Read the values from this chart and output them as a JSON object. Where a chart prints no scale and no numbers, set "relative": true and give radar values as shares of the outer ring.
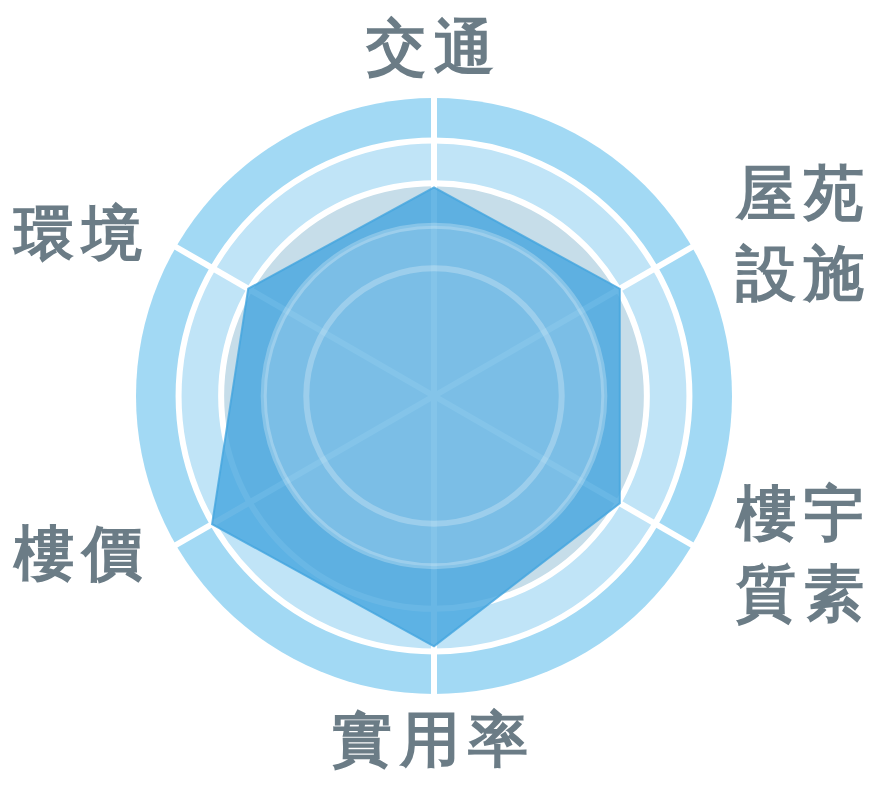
{
  "chart_data": {
    "type": "radar",
    "relative": true,
    "grid": true,
    "categories": [
      "交通",
      "屋苑設施",
      "樓宇質素",
      "實用率",
      "樓價",
      "環境"
    ],
    "series": [
      {
        "color": "#44a5df",
        "values": [
          0.7,
          0.72,
          0.72,
          0.84,
          0.86,
          0.72
        ]
      }
    ]
  }
}
